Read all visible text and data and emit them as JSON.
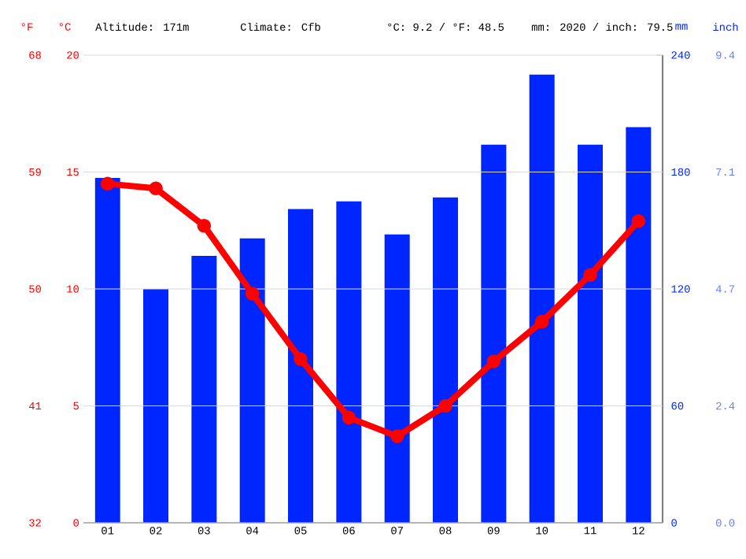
{
  "chart_data": {
    "type": "bar",
    "categories": [
      "01",
      "02",
      "03",
      "04",
      "05",
      "06",
      "07",
      "08",
      "09",
      "10",
      "11",
      "12"
    ],
    "series": [
      {
        "axis": "y2",
        "color": "#0026ff",
        "values": [
          177,
          120,
          137,
          146,
          161,
          165,
          148,
          167,
          194,
          230,
          194,
          203
        ]
      },
      {
        "type": "line",
        "axis": "y",
        "color": "#ff0000",
        "marker": "circle",
        "values": [
          14.5,
          14.3,
          12.7,
          9.8,
          7.0,
          4.5,
          3.7,
          5.0,
          6.9,
          8.6,
          10.6,
          12.9
        ]
      }
    ],
    "ylabel": "°C",
    "y2label": "mm",
    "y3label": "°F",
    "ylim": [
      0,
      20
    ],
    "yticks": [
      0,
      5,
      10,
      15,
      20
    ],
    "y2lim": [
      0,
      240
    ],
    "y2ticks": [
      0,
      60,
      120,
      180,
      240
    ],
    "y3lim": [
      32,
      68
    ],
    "y3ticks": [
      32,
      41,
      50,
      59,
      68
    ],
    "grid": "y",
    "annotations": [
      "Altitude: 171m",
      "Climate: Cfb",
      "°C: 9.2 / °F: 48.5",
      "mm: 2020 / inch: 79.5",
      "inch",
      "0.0",
      "2.4",
      "4.7",
      "7.1",
      "9.4"
    ]
  }
}
